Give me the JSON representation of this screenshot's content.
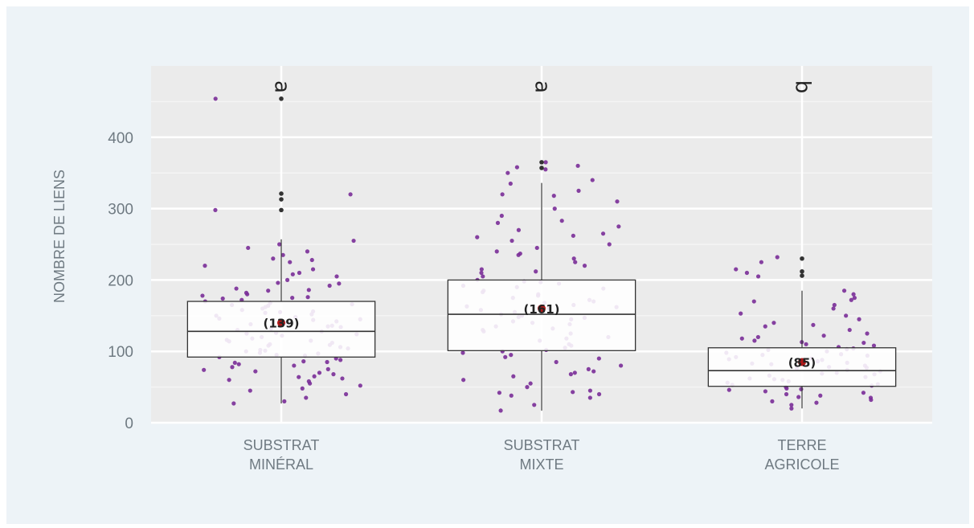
{
  "chart_data": {
    "type": "boxplot",
    "ylabel": "NOMBRE DE LIENS",
    "xlabel": "",
    "ylim": [
      0,
      500
    ],
    "yticks": [
      0,
      100,
      200,
      300,
      400
    ],
    "grid": true,
    "categories": [
      {
        "lines": [
          "SUBSTRAT",
          "MINÉRAL"
        ],
        "letter": "a",
        "count_label": "(139)",
        "mean": 140,
        "box": {
          "min": 27,
          "q1": 92,
          "median": 128,
          "q3": 170,
          "max": 257
        },
        "outliers": [
          298,
          313,
          321,
          454
        ],
        "points": [
          35,
          45,
          48,
          52,
          55,
          58,
          60,
          62,
          65,
          68,
          70,
          72,
          75,
          78,
          80,
          82,
          84,
          85,
          88,
          90,
          92,
          95,
          97,
          98,
          100,
          102,
          104,
          106,
          108,
          110,
          112,
          114,
          116,
          118,
          120,
          122,
          124,
          126,
          128,
          130,
          132,
          134,
          136,
          138,
          140,
          142,
          144,
          146,
          148,
          150,
          152,
          154,
          156,
          158,
          160,
          162,
          164,
          166,
          168,
          170,
          172,
          174,
          176,
          178,
          180,
          182,
          185,
          188,
          192,
          196,
          200,
          205,
          210,
          215,
          220,
          225,
          230,
          235,
          240,
          245,
          250,
          255,
          27,
          30,
          40,
          64,
          74,
          86,
          94,
          101,
          109,
          115,
          125,
          135,
          145,
          155,
          165,
          175,
          186,
          195,
          208,
          228,
          298,
          320,
          454
        ]
      },
      {
        "lines": [
          "SUBSTRAT",
          "MIXTE"
        ],
        "letter": "a",
        "count_label": "(161)",
        "mean": 160,
        "box": {
          "min": 17,
          "q1": 101,
          "median": 152,
          "q3": 200,
          "max": 336
        },
        "outliers": [
          357,
          365
        ],
        "points": [
          17,
          25,
          35,
          38,
          40,
          42,
          45,
          50,
          55,
          60,
          65,
          70,
          72,
          75,
          80,
          85,
          90,
          95,
          98,
          100,
          102,
          105,
          108,
          110,
          115,
          118,
          120,
          125,
          130,
          132,
          135,
          138,
          140,
          142,
          145,
          148,
          150,
          152,
          155,
          158,
          160,
          162,
          165,
          168,
          170,
          172,
          175,
          178,
          180,
          185,
          188,
          190,
          192,
          195,
          198,
          200,
          205,
          210,
          215,
          220,
          225,
          230,
          235,
          240,
          245,
          250,
          255,
          260,
          265,
          270,
          275,
          280,
          290,
          300,
          310,
          320,
          325,
          335,
          340,
          350,
          355,
          360,
          365,
          43,
          68,
          92,
          128,
          147,
          163,
          183,
          197,
          212,
          237,
          262,
          283,
          318,
          358
        ]
      },
      {
        "lines": [
          "TERRE",
          "AGRICOLE"
        ],
        "letter": "b",
        "count_label": "(85)",
        "mean": 85,
        "box": {
          "min": 20,
          "q1": 51,
          "median": 73,
          "q3": 105,
          "max": 185
        },
        "outliers": [
          206,
          212,
          230
        ],
        "points": [
          20,
          25,
          28,
          30,
          32,
          35,
          38,
          40,
          42,
          44,
          46,
          48,
          50,
          52,
          54,
          56,
          58,
          60,
          62,
          64,
          66,
          68,
          70,
          72,
          74,
          76,
          78,
          80,
          82,
          84,
          86,
          88,
          90,
          92,
          94,
          96,
          98,
          100,
          102,
          104,
          106,
          108,
          110,
          112,
          115,
          118,
          120,
          125,
          130,
          135,
          140,
          145,
          150,
          160,
          165,
          170,
          175,
          180,
          185,
          205,
          210,
          215,
          225,
          232,
          36,
          47,
          53,
          61,
          69,
          77,
          83,
          89,
          95,
          103,
          113,
          122,
          137,
          153,
          172
        ]
      }
    ]
  }
}
